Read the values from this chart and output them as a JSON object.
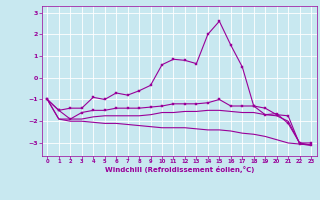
{
  "x": [
    0,
    1,
    2,
    3,
    4,
    5,
    6,
    7,
    8,
    9,
    10,
    11,
    12,
    13,
    14,
    15,
    16,
    17,
    18,
    19,
    20,
    21,
    22,
    23
  ],
  "line1": [
    -1.0,
    -1.5,
    -1.4,
    -1.4,
    -0.9,
    -1.0,
    -0.7,
    -0.8,
    -0.6,
    -0.35,
    0.6,
    0.85,
    0.8,
    0.65,
    2.0,
    2.6,
    1.5,
    0.5,
    -1.3,
    -1.7,
    -1.65,
    -2.1,
    -3.0,
    -3.0
  ],
  "line2": [
    -1.0,
    -1.5,
    -1.9,
    -1.6,
    -1.5,
    -1.5,
    -1.4,
    -1.4,
    -1.4,
    -1.35,
    -1.3,
    -1.2,
    -1.2,
    -1.2,
    -1.15,
    -1.0,
    -1.3,
    -1.3,
    -1.3,
    -1.4,
    -1.7,
    -1.75,
    -3.05,
    -3.1
  ],
  "line3": [
    -1.0,
    -1.9,
    -1.9,
    -1.9,
    -1.8,
    -1.75,
    -1.75,
    -1.75,
    -1.75,
    -1.7,
    -1.6,
    -1.6,
    -1.55,
    -1.55,
    -1.5,
    -1.5,
    -1.55,
    -1.6,
    -1.6,
    -1.7,
    -1.75,
    -2.0,
    -3.0,
    -3.1
  ],
  "line4": [
    -1.0,
    -1.9,
    -2.0,
    -2.0,
    -2.05,
    -2.1,
    -2.1,
    -2.15,
    -2.2,
    -2.25,
    -2.3,
    -2.3,
    -2.3,
    -2.35,
    -2.4,
    -2.4,
    -2.45,
    -2.55,
    -2.6,
    -2.7,
    -2.85,
    -3.0,
    -3.05,
    -3.1
  ],
  "color": "#990099",
  "bg_color": "#c8e8f0",
  "grid_color": "#ffffff",
  "ylim": [
    -3.6,
    3.3
  ],
  "xlim": [
    -0.5,
    23.5
  ],
  "xlabel": "Windchill (Refroidissement éolien,°C)",
  "yticks": [
    3,
    2,
    1,
    0,
    -1,
    -2,
    -3
  ],
  "xticks": [
    0,
    1,
    2,
    3,
    4,
    5,
    6,
    7,
    8,
    9,
    10,
    11,
    12,
    13,
    14,
    15,
    16,
    17,
    18,
    19,
    20,
    21,
    22,
    23
  ],
  "marker_size": 2.0,
  "linewidth": 0.8
}
